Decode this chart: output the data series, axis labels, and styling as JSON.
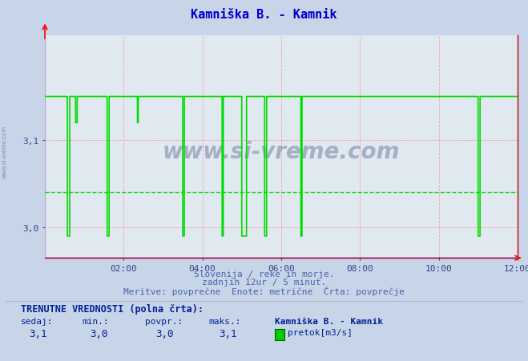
{
  "title": "Kamniška B. - Kamnik",
  "title_color": "#0000cc",
  "bg_color": "#c8d4e8",
  "plot_bg_color": "#e0e8f0",
  "line_color": "#00dd00",
  "avg_line_color": "#00dd00",
  "grid_color_h": "#ff9999",
  "grid_color_v": "#ff9999",
  "baseline_color": "#8888ff",
  "xticklabels": [
    "02:00",
    "04:00",
    "06:00",
    "08:00",
    "10:00",
    "12:00"
  ],
  "xtick_positions": [
    2,
    4,
    6,
    8,
    10,
    12
  ],
  "ytick_positions": [
    3.0,
    3.1
  ],
  "ytick_labels": [
    "3,0",
    "3,1"
  ],
  "xlim": [
    0,
    12
  ],
  "ylim": [
    2.965,
    3.22
  ],
  "avg_value": 3.04,
  "watermark": "www.si-vreme.com",
  "footer_line1": "Slovenija / reke in morje.",
  "footer_line2": "zadnjih 12ur / 5 minut.",
  "footer_line3": "Meritve: povprečne  Enote: metrične  Črta: povprečje",
  "label_trenutne": "TRENUTNE VREDNOSTI (polna črta):",
  "label_sedaj": "sedaj:",
  "label_min": "min.:",
  "label_povpr": "povpr.:",
  "label_maks": "maks.:",
  "val_sedaj": "3,1",
  "val_min": "3,0",
  "val_povpr": "3,0",
  "val_maks": "3,1",
  "legend_name": "Kamniška B. - Kamnik",
  "legend_label": "pretok[m3/s]",
  "legend_color": "#00cc00",
  "watermark_color": "#1a3060",
  "sidebar_text": "www.si-vreme.com",
  "signal_high": 3.15,
  "signal_low": 2.99,
  "signal_mid": 3.12
}
